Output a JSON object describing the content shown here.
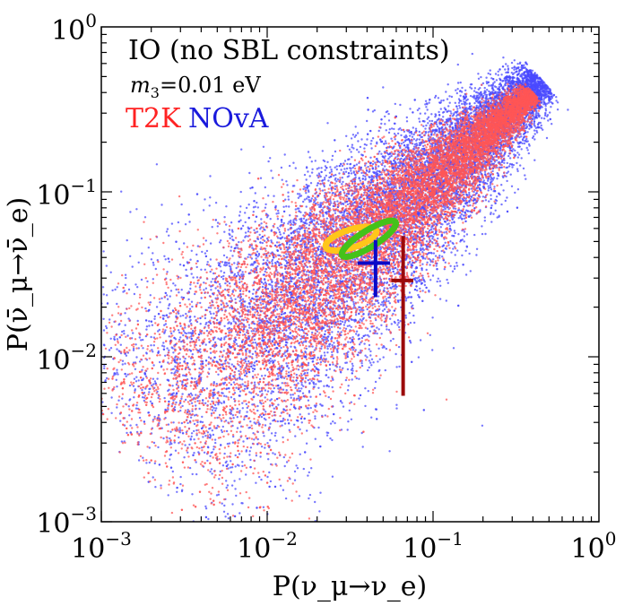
{
  "chart_data": {
    "type": "scatter",
    "title": "",
    "xlabel": "P(ν_μ→ν_e)",
    "ylabel": "P(ν̄_μ→ν̄_e)",
    "xscale": "log",
    "yscale": "log",
    "xlim": [
      0.001,
      1
    ],
    "ylim": [
      0.001,
      1
    ],
    "x_ticks": [
      {
        "value": 0.001,
        "base": "10",
        "exp": "−3"
      },
      {
        "value": 0.01,
        "base": "10",
        "exp": "−2"
      },
      {
        "value": 0.1,
        "base": "10",
        "exp": "−1"
      },
      {
        "value": 1,
        "base": "10",
        "exp": "0"
      }
    ],
    "y_ticks": [
      {
        "value": 0.001,
        "base": "10",
        "exp": "−3"
      },
      {
        "value": 0.01,
        "base": "10",
        "exp": "−2"
      },
      {
        "value": 0.1,
        "base": "10",
        "exp": "−1"
      },
      {
        "value": 1,
        "base": "10",
        "exp": "0"
      }
    ],
    "annotations": {
      "scenario": "IO (no SBL constraints)",
      "mass_symbol": "m",
      "mass_subscript": "3",
      "mass_value": "=0.01 eV"
    },
    "legend": [
      {
        "name": "T2K",
        "color": "#ff2222"
      },
      {
        "name": "NOvA",
        "color": "#1a1adc"
      }
    ],
    "series": [
      {
        "name": "NOvA",
        "kind": "scatter-cloud",
        "color": "#4a4aff",
        "approx_points": 12000,
        "cloud": {
          "ridge_start": [
            0.0013,
            0.0025
          ],
          "ridge_end": [
            0.45,
            0.48
          ],
          "spread_decades_at_start": 0.9,
          "spread_decades_at_end": 0.12
        }
      },
      {
        "name": "T2K",
        "kind": "scatter-cloud",
        "color": "#ff5555",
        "approx_points": 12000,
        "cloud": {
          "ridge_start": [
            0.0013,
            0.0025
          ],
          "ridge_end": [
            0.4,
            0.4
          ],
          "spread_decades_at_start": 0.75,
          "spread_decades_at_end": 0.06
        }
      },
      {
        "name": "T2K best-fit region",
        "kind": "ellipse",
        "color": "#ffc61a",
        "center": [
          0.032,
          0.052
        ],
        "semi_axes_decades": [
          0.16,
          0.055
        ],
        "angle_deg": -18
      },
      {
        "name": "NOvA best-fit region",
        "kind": "ellipse",
        "color": "#44c21a",
        "center": [
          0.041,
          0.052
        ],
        "semi_axes_decades": [
          0.19,
          0.05
        ],
        "angle_deg": -32
      },
      {
        "name": "T2K data point",
        "kind": "errorbar",
        "color": "#0a0ac8",
        "x": 0.045,
        "x_err": [
          0.035,
          0.055
        ],
        "y": 0.037,
        "y_err": [
          0.023,
          0.051
        ]
      },
      {
        "name": "NOvA data point",
        "kind": "errorbar",
        "color": "#9b0a0a",
        "x": 0.066,
        "x_err": [
          0.056,
          0.076
        ],
        "y": 0.029,
        "y_err": [
          0.0058,
          0.054
        ]
      }
    ]
  }
}
